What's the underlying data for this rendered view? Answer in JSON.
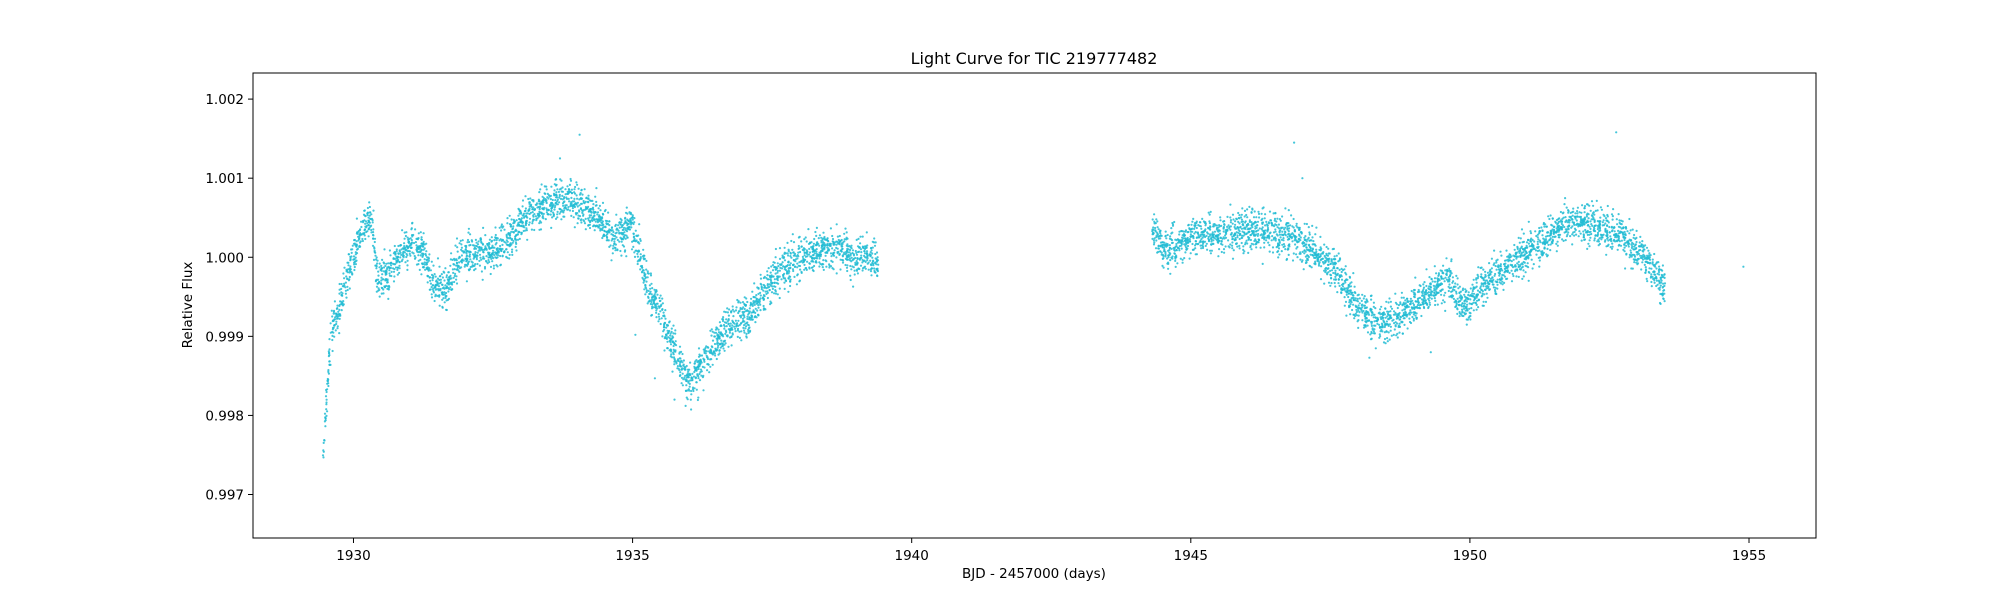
{
  "chart_data": {
    "type": "scatter",
    "title": "Light Curve for TIC 219777482",
    "xlabel": "BJD - 2457000 (days)",
    "ylabel": "Relative Flux",
    "xlim": [
      1928.2,
      1956.2
    ],
    "ylim": [
      0.99645,
      1.00233
    ],
    "x_ticks": [
      1930,
      1935,
      1940,
      1945,
      1950,
      1955
    ],
    "x_tick_labels": [
      "1930",
      "1935",
      "1940",
      "1945",
      "1950",
      "1955"
    ],
    "y_ticks": [
      0.997,
      0.998,
      0.999,
      1.0,
      1.001,
      1.002
    ],
    "y_tick_labels": [
      "0.997",
      "0.998",
      "0.999",
      "1.000",
      "1.001",
      "1.002"
    ],
    "grid": false,
    "legend": "none",
    "color": "#22bcd4",
    "series": [
      {
        "trend": [
          [
            1929.45,
            0.99735
          ],
          [
            1929.52,
            0.9983
          ],
          [
            1929.6,
            0.99905
          ],
          [
            1929.75,
            0.99935
          ],
          [
            1929.95,
            0.9999
          ],
          [
            1930.15,
            1.00035
          ],
          [
            1930.3,
            1.00045
          ],
          [
            1930.45,
            0.99975
          ],
          [
            1930.6,
            0.99975
          ],
          [
            1930.85,
            1.00005
          ],
          [
            1931.05,
            1.0002
          ],
          [
            1931.25,
            1.00005
          ],
          [
            1931.45,
            0.99965
          ],
          [
            1931.65,
            0.9996
          ],
          [
            1931.85,
            0.99995
          ],
          [
            1932.2,
            1.00005
          ],
          [
            1932.6,
            1.0001
          ],
          [
            1932.9,
            1.00035
          ],
          [
            1933.2,
            1.0006
          ],
          [
            1933.55,
            1.0007
          ],
          [
            1933.85,
            1.00075
          ],
          [
            1934.1,
            1.0006
          ],
          [
            1934.4,
            1.0005
          ],
          [
            1934.65,
            1.00025
          ],
          [
            1934.95,
            1.0004
          ],
          [
            1935.1,
            1.0001
          ],
          [
            1935.3,
            0.99955
          ],
          [
            1935.5,
            0.99935
          ],
          [
            1935.7,
            0.9989
          ],
          [
            1935.9,
            0.99855
          ],
          [
            1936.05,
            0.9984
          ],
          [
            1936.3,
            0.99875
          ],
          [
            1936.7,
            0.9991
          ],
          [
            1937.1,
            0.9993
          ],
          [
            1937.5,
            0.9997
          ],
          [
            1937.9,
            0.99995
          ],
          [
            1938.3,
            1.0001
          ],
          [
            1938.7,
            1.00015
          ],
          [
            1939.0,
            0.99995
          ],
          [
            1939.2,
            1.00005
          ],
          [
            1939.4,
            0.9999
          ],
          [
            1944.3,
            1.0004
          ],
          [
            1944.5,
            1.0001
          ],
          [
            1944.8,
            1.00015
          ],
          [
            1945.1,
            1.0003
          ],
          [
            1945.6,
            1.0003
          ],
          [
            1946.1,
            1.00035
          ],
          [
            1946.5,
            1.0003
          ],
          [
            1946.85,
            1.00025
          ],
          [
            1947.2,
            1.00005
          ],
          [
            1947.6,
            0.99985
          ],
          [
            1947.9,
            0.99945
          ],
          [
            1948.3,
            0.9992
          ],
          [
            1948.6,
            0.9992
          ],
          [
            1948.9,
            0.99935
          ],
          [
            1949.2,
            0.9995
          ],
          [
            1949.6,
            0.99975
          ],
          [
            1949.9,
            0.99935
          ],
          [
            1950.2,
            0.99965
          ],
          [
            1950.6,
            0.99985
          ],
          [
            1951.0,
            1.00005
          ],
          [
            1951.4,
            1.00025
          ],
          [
            1951.8,
            1.00045
          ],
          [
            1952.2,
            1.0004
          ],
          [
            1952.6,
            1.0003
          ],
          [
            1952.9,
            1.00015
          ],
          [
            1953.2,
            0.99995
          ],
          [
            1953.5,
            0.9996
          ]
        ],
        "outliers": [
          [
            1934.05,
            1.00155
          ],
          [
            1946.85,
            1.00145
          ],
          [
            1952.62,
            1.00158
          ],
          [
            1954.9,
            0.99988
          ],
          [
            1935.05,
            0.99902
          ],
          [
            1935.4,
            0.99847
          ],
          [
            1935.95,
            0.99812
          ],
          [
            1935.75,
            0.9982
          ],
          [
            1947.0,
            1.001
          ],
          [
            1933.7,
            1.00125
          ],
          [
            1948.2,
            0.99873
          ],
          [
            1949.3,
            0.9988
          ]
        ]
      }
    ]
  }
}
